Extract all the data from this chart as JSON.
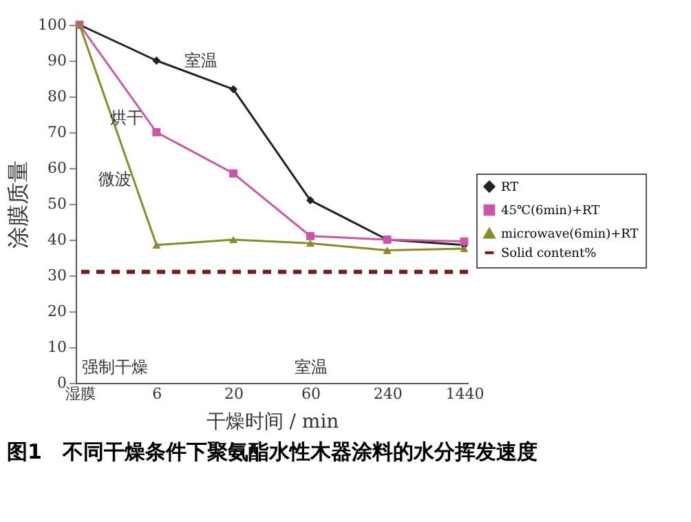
{
  "chart_data": {
    "type": "line",
    "title": "图1　不同干燥条件下聚氨酯水性木器涂料的水分挥发速度",
    "xlabel": "干燥时间 / min",
    "ylabel": "涂膜质量",
    "categories": [
      "湿膜",
      "6",
      "20",
      "60",
      "240",
      "1440"
    ],
    "series": [
      {
        "name": "RT",
        "color": "#222222",
        "marker": "diamond",
        "values": [
          100,
          90,
          82,
          51,
          40,
          38.5
        ]
      },
      {
        "name": "45℃(6min)+RT",
        "color": "#cc55aa",
        "marker": "square",
        "values": [
          100,
          70,
          58.5,
          41,
          40,
          39.5
        ]
      },
      {
        "name": "microwave(6min)+RT",
        "color": "#8a8a2a",
        "marker": "triangle",
        "values": [
          100,
          38.5,
          40,
          39,
          37,
          37.5
        ]
      }
    ],
    "ref_lines": [
      {
        "axis": "y",
        "value": 31,
        "label": "Solid content%",
        "color": "#7a1a1a",
        "line_style": "dashed"
      }
    ],
    "annotations": [
      "室温",
      "烘干",
      "微波",
      "强制干燥",
      "室温"
    ],
    "ylim": [
      0,
      100
    ],
    "yticks": [
      0,
      10,
      20,
      30,
      40,
      50,
      60,
      70,
      80,
      90,
      100
    ],
    "grid": false,
    "legend": "right",
    "line_style": "solid"
  }
}
